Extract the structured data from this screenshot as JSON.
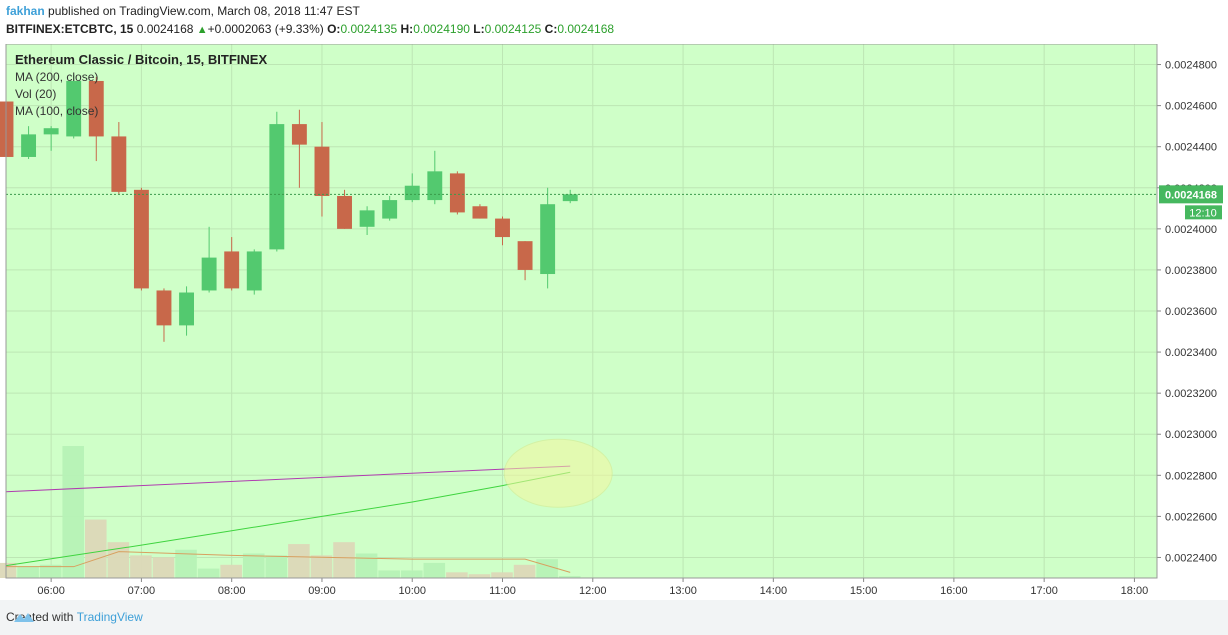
{
  "header": {
    "author": "fakhan",
    "published_text": "published on TradingView.com, March 08, 2018 11:47 EST",
    "symbol": "BITFINEX:ETCBTC, 15",
    "last_price": "0.0024168",
    "change": "+0.0002063 (+9.33%)",
    "open_label": "O:",
    "open": "0.0024135",
    "high_label": "H:",
    "high": "0.0024190",
    "low_label": "L:",
    "low": "0.0024125",
    "close_label": "C:",
    "close": "0.0024168"
  },
  "legend": {
    "title": "Ethereum Classic / Bitcoin, 15, BITFINEX",
    "ma200": "MA (200, close)",
    "vol": "Vol (20)",
    "ma100": "MA (100, close)"
  },
  "price_badge": "0.0024168",
  "time_badge": "12:10",
  "footer": {
    "created_with": "Created with",
    "brand": "TradingView"
  },
  "colors": {
    "up": "#53c96f",
    "down": "#c8684a",
    "background": "#cfffc8",
    "ma200": "#b03cb0",
    "ma100": "#3fd43f",
    "vol_ma": "#d8a060",
    "badge": "#46b85f",
    "brand": "#3ea0d8"
  },
  "chart_data": {
    "type": "candlestick",
    "symbol": "BITFINEX:ETCBTC",
    "interval": "15",
    "x_ticks": [
      "06:00",
      "07:00",
      "08:00",
      "09:00",
      "10:00",
      "11:00",
      "12:00",
      "13:00",
      "14:00",
      "15:00",
      "16:00",
      "17:00",
      "18:00"
    ],
    "y_ticks": [
      "0.0022400",
      "0.0022600",
      "0.0022800",
      "0.0023000",
      "0.0023200",
      "0.0023400",
      "0.0023600",
      "0.0023800",
      "0.0024000",
      "0.0024200",
      "0.0024400",
      "0.0024600",
      "0.0024800"
    ],
    "ylim": [
      0.00223,
      0.00249
    ],
    "xlim": [
      "05:30",
      "18:15"
    ],
    "candles": [
      {
        "time": "05:30",
        "open": 0.002462,
        "high": 0.002463,
        "low": 0.002432,
        "close": 0.002435
      },
      {
        "time": "05:45",
        "open": 0.002435,
        "high": 0.00245,
        "low": 0.002434,
        "close": 0.002446
      },
      {
        "time": "06:00",
        "open": 0.002446,
        "high": 0.00245,
        "low": 0.002438,
        "close": 0.002449
      },
      {
        "time": "06:15",
        "open": 0.002445,
        "high": 0.002475,
        "low": 0.002444,
        "close": 0.002472
      },
      {
        "time": "06:30",
        "open": 0.002472,
        "high": 0.002474,
        "low": 0.002433,
        "close": 0.002445
      },
      {
        "time": "06:45",
        "open": 0.002445,
        "high": 0.002452,
        "low": 0.002417,
        "close": 0.002418
      },
      {
        "time": "07:00",
        "open": 0.002419,
        "high": 0.00242,
        "low": 0.00237,
        "close": 0.002371
      },
      {
        "time": "07:15",
        "open": 0.00237,
        "high": 0.002371,
        "low": 0.002345,
        "close": 0.002353
      },
      {
        "time": "07:30",
        "open": 0.002353,
        "high": 0.002372,
        "low": 0.002348,
        "close": 0.002369
      },
      {
        "time": "07:45",
        "open": 0.00237,
        "high": 0.002401,
        "low": 0.002369,
        "close": 0.002386
      },
      {
        "time": "08:00",
        "open": 0.002389,
        "high": 0.002396,
        "low": 0.00237,
        "close": 0.002371
      },
      {
        "time": "08:15",
        "open": 0.00237,
        "high": 0.00239,
        "low": 0.002368,
        "close": 0.002389
      },
      {
        "time": "08:30",
        "open": 0.00239,
        "high": 0.002457,
        "low": 0.002389,
        "close": 0.002451
      },
      {
        "time": "08:45",
        "open": 0.002451,
        "high": 0.002458,
        "low": 0.00242,
        "close": 0.002441
      },
      {
        "time": "09:00",
        "open": 0.00244,
        "high": 0.002452,
        "low": 0.002406,
        "close": 0.002416
      },
      {
        "time": "09:15",
        "open": 0.002416,
        "high": 0.002419,
        "low": 0.0024,
        "close": 0.0024
      },
      {
        "time": "09:30",
        "open": 0.002401,
        "high": 0.002411,
        "low": 0.002397,
        "close": 0.002409
      },
      {
        "time": "09:45",
        "open": 0.002405,
        "high": 0.002416,
        "low": 0.002404,
        "close": 0.002414
      },
      {
        "time": "10:00",
        "open": 0.002414,
        "high": 0.002427,
        "low": 0.002413,
        "close": 0.002421
      },
      {
        "time": "10:15",
        "open": 0.002414,
        "high": 0.002438,
        "low": 0.002412,
        "close": 0.002428
      },
      {
        "time": "10:30",
        "open": 0.002427,
        "high": 0.002428,
        "low": 0.002407,
        "close": 0.002408
      },
      {
        "time": "10:45",
        "open": 0.002411,
        "high": 0.002412,
        "low": 0.002405,
        "close": 0.002405
      },
      {
        "time": "11:00",
        "open": 0.002405,
        "high": 0.002406,
        "low": 0.002392,
        "close": 0.002396
      },
      {
        "time": "11:15",
        "open": 0.002394,
        "high": 0.002394,
        "low": 0.002375,
        "close": 0.00238
      },
      {
        "time": "11:30",
        "open": 0.002378,
        "high": 0.00242,
        "low": 0.002371,
        "close": 0.002412
      },
      {
        "time": "11:45",
        "open": 0.0024135,
        "high": 0.002419,
        "low": 0.0024125,
        "close": 0.0024168
      }
    ],
    "volume": [
      8,
      6,
      7,
      70,
      31,
      19,
      12,
      11,
      15,
      5,
      7,
      13,
      12,
      18,
      12,
      19,
      13,
      4,
      4,
      8,
      3,
      2,
      3,
      7,
      10,
      1
    ],
    "ma200": [
      {
        "time": "05:30",
        "value": 0.002272
      },
      {
        "time": "11:45",
        "value": 0.0022845
      }
    ],
    "ma100": [
      {
        "time": "05:30",
        "value": 0.002236
      },
      {
        "time": "07:00",
        "value": 0.002246
      },
      {
        "time": "08:00",
        "value": 0.002253
      },
      {
        "time": "09:00",
        "value": 0.00226
      },
      {
        "time": "10:00",
        "value": 0.002267
      },
      {
        "time": "11:00",
        "value": 0.002275
      },
      {
        "time": "11:45",
        "value": 0.0022815
      }
    ],
    "vol_ma": [
      {
        "time": "05:30",
        "value": 6
      },
      {
        "time": "06:15",
        "value": 6
      },
      {
        "time": "06:45",
        "value": 14
      },
      {
        "time": "08:00",
        "value": 12
      },
      {
        "time": "10:00",
        "value": 10
      },
      {
        "time": "11:15",
        "value": 10
      },
      {
        "time": "11:45",
        "value": 3
      }
    ],
    "last_price": 0.0024168
  }
}
